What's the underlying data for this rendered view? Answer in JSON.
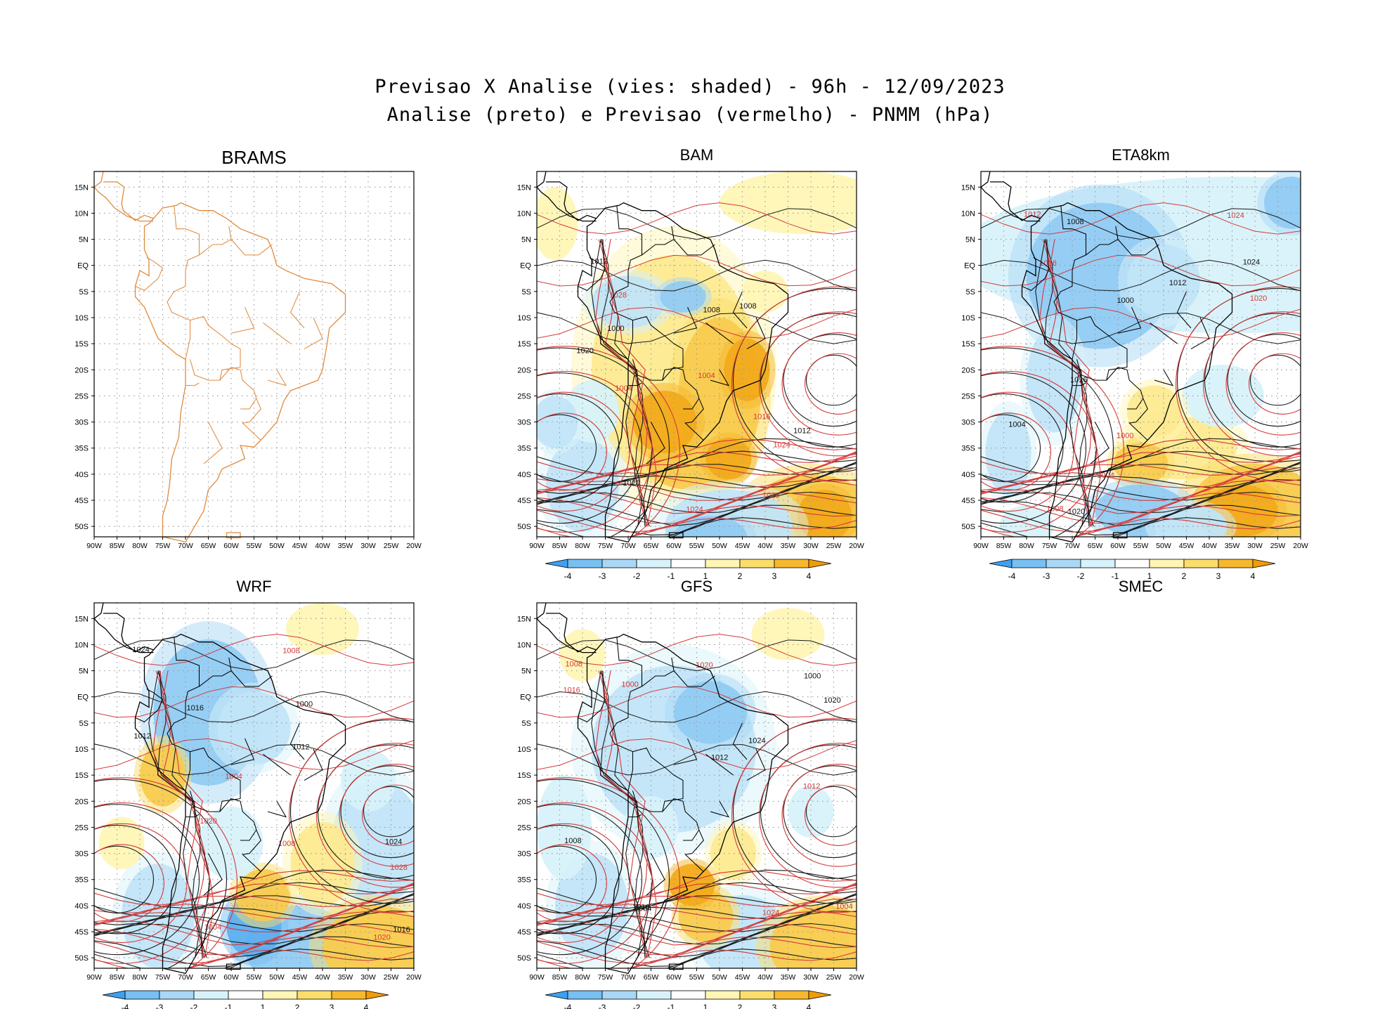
{
  "figure": {
    "title_line1": "Previsao X Analise (vies: shaded) - 96h - 12/09/2023",
    "title_line2": "Analise (preto) e Previsao (vermelho) - PNMM (hPa)"
  },
  "axes": {
    "lat_labels": [
      "15N",
      "10N",
      "5N",
      "EQ",
      "5S",
      "10S",
      "15S",
      "20S",
      "25S",
      "30S",
      "35S",
      "40S",
      "45S",
      "50S"
    ],
    "lon_labels": [
      "90W",
      "85W",
      "80W",
      "75W",
      "70W",
      "65W",
      "60W",
      "55W",
      "50W",
      "45W",
      "40W",
      "35W",
      "30W",
      "25W",
      "20W"
    ]
  },
  "colorbar": {
    "labels": [
      "-4",
      "-3",
      "-2",
      "-1",
      "1",
      "2",
      "3",
      "4"
    ],
    "colors": [
      "#3fa0f0",
      "#78bff2",
      "#a9d7f5",
      "#d7f2fa",
      "#ffffff",
      "#fff5b4",
      "#fbdd6c",
      "#f6b82e",
      "#f09c08"
    ]
  },
  "panels": [
    {
      "name": "BRAMS",
      "has_data": false,
      "has_colorbar": false
    },
    {
      "name": "BAM",
      "has_data": true,
      "has_colorbar": true,
      "contour_labels": [
        "1012",
        "1016",
        "1020",
        "1024",
        "1008",
        "1004",
        "1000",
        "1028"
      ]
    },
    {
      "name": "ETA8km",
      "has_data": true,
      "has_colorbar": true,
      "contour_labels": [
        "1012",
        "1008",
        "1016",
        "1004",
        "1020",
        "1024",
        "1000"
      ]
    },
    {
      "name": "WRF",
      "has_data": true,
      "has_colorbar": true,
      "contour_labels": [
        "1012",
        "1008",
        "1016",
        "1020",
        "1024",
        "1004",
        "1000",
        "1028"
      ]
    },
    {
      "name": "GFS",
      "has_data": true,
      "has_colorbar": true,
      "contour_labels": [
        "1012",
        "1008",
        "1016",
        "1020",
        "1024",
        "1004",
        "1000"
      ]
    },
    {
      "name": "SMEC",
      "has_data": false,
      "has_colorbar": false
    }
  ]
}
